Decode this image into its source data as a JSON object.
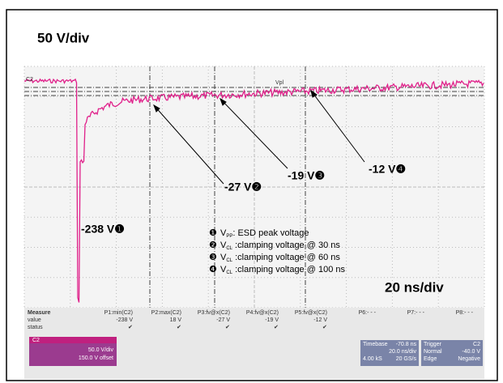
{
  "scope": {
    "volt_div": "50 V/div",
    "time_div": "20 ns/div",
    "channel_tag": "C2",
    "cursor_tag": "Vpl",
    "annotations": [
      "-238 V❶",
      "-27 V❷",
      "-19 V❸",
      "-12 V❹"
    ],
    "legend": [
      {
        "mark": "❶",
        "sym": "V",
        "sub": "PP",
        "text": ": ESD peak voltage"
      },
      {
        "mark": "❷",
        "sym": "V",
        "sub": "CL",
        "text": " :clamping voltage @ 30 ns"
      },
      {
        "mark": "❸",
        "sym": "V",
        "sub": "CL",
        "text": " :clamping voltage @ 60 ns"
      },
      {
        "mark": "❹",
        "sym": "V",
        "sub": "CL",
        "text": " :clamping voltage @ 100 ns"
      }
    ],
    "measure": {
      "row_labels": [
        "Measure",
        "value",
        "status"
      ],
      "params": [
        "P1:min(C2)",
        "P2:max(C2)",
        "P3:fv@x(C2)",
        "P4:fv@x(C2)",
        "P5:fv@x(C2)",
        "P6:- - -",
        "P7:- - -",
        "P8:- - -"
      ],
      "values": [
        "-238 V",
        "18 V",
        "-27 V",
        "-19 V",
        "-12 V",
        "",
        "",
        ""
      ],
      "status": [
        "✔",
        "✔",
        "✔",
        "✔",
        "✔",
        "",
        "",
        ""
      ]
    },
    "channel": {
      "name": "C2",
      "vdiv": "50.0 V/div",
      "offset": "150.0 V offset"
    },
    "timebase": {
      "label": "Timebase",
      "delay": "-70.8 ns",
      "tdiv": "20.0 ns/div",
      "samples": "4.00 kS",
      "rate": "20 GS/s"
    },
    "trigger": {
      "label": "Trigger",
      "source": "C2",
      "mode": "Normal",
      "level": "-40.0 V",
      "type": "Edge",
      "slope": "Negative"
    }
  }
}
